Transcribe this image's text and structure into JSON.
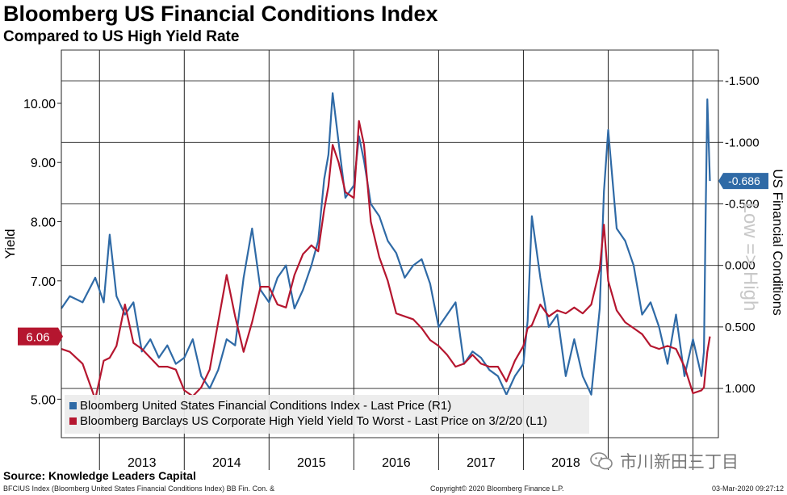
{
  "title": "Bloomberg US Financial Conditions Index",
  "subtitle": "Compared to US High Yield Rate",
  "source": "Source: Knowledge Leaders Capital",
  "footer": {
    "left": "BFCIUS Index (Bloomberg United States Financial Conditions Index) BB Fin. Con. &",
    "center": "Copyright© 2020 Bloomberg Finance L.P.",
    "right": "03-Mar-2020 09:27:12"
  },
  "watermark": "市川新田三丁目",
  "colors": {
    "fci": "#2f6aa6",
    "hy": "#b5162f",
    "background": "#ffffff"
  },
  "chart_data": {
    "type": "line",
    "title": "Bloomberg US Financial Conditions Index",
    "subtitle": "Compared to US High Yield Rate",
    "ylabel_left": "Yield",
    "ylabel_right": "US Financial Conditions",
    "right_axis_annotation": "Low => High",
    "left_axis": {
      "min": 4.35,
      "max": 10.9,
      "ticks": [
        5.0,
        6.0,
        7.0,
        8.0,
        9.0,
        10.0
      ],
      "tick_labels": [
        "5.00",
        "6.00",
        "7.00",
        "8.00",
        "9.00",
        "10.00"
      ]
    },
    "right_axis": {
      "inverted": true,
      "min": -1.75,
      "max": 1.4,
      "ticks": [
        -1.5,
        -1.0,
        -0.5,
        0.0,
        0.5,
        1.0
      ],
      "tick_labels": [
        "-1.500",
        "-1.000",
        "-0.500",
        "0.000",
        "0.500",
        "1.000"
      ]
    },
    "x_axis": {
      "min": 2012.55,
      "max": 2020.3,
      "year_labels": [
        "2013",
        "2014",
        "2015",
        "2016",
        "2017",
        "2018"
      ],
      "year_positions": [
        2013.0,
        2014.0,
        2015.0,
        2016.0,
        2017.0,
        2018.0
      ]
    },
    "last_price_labels": {
      "hy": "6.06",
      "fci": "-0.686"
    },
    "grid": true,
    "legend_position": "bottom-left",
    "series": [
      {
        "name": "Bloomberg United States Financial Conditions Index - Last Price (R1)",
        "axis": "right",
        "color": "#2f6aa6",
        "x": [
          2012.55,
          2012.65,
          2012.8,
          2012.95,
          2013.05,
          2013.12,
          2013.2,
          2013.3,
          2013.4,
          2013.5,
          2013.6,
          2013.7,
          2013.8,
          2013.9,
          2014.0,
          2014.1,
          2014.2,
          2014.3,
          2014.4,
          2014.5,
          2014.6,
          2014.7,
          2014.8,
          2014.9,
          2015.0,
          2015.1,
          2015.2,
          2015.3,
          2015.4,
          2015.5,
          2015.58,
          2015.65,
          2015.7,
          2015.75,
          2015.82,
          2015.9,
          2016.0,
          2016.06,
          2016.12,
          2016.2,
          2016.3,
          2016.4,
          2016.5,
          2016.6,
          2016.7,
          2016.8,
          2016.9,
          2017.0,
          2017.1,
          2017.2,
          2017.3,
          2017.4,
          2017.5,
          2017.6,
          2017.7,
          2017.8,
          2017.9,
          2018.0,
          2018.05,
          2018.1,
          2018.2,
          2018.3,
          2018.4,
          2018.5,
          2018.6,
          2018.7,
          2018.8,
          2018.9,
          2018.95,
          2019.0,
          2019.1,
          2019.2,
          2019.3,
          2019.4,
          2019.5,
          2019.6,
          2019.7,
          2019.8,
          2019.9,
          2020.0,
          2020.1,
          2020.13,
          2020.15,
          2020.17,
          2020.2
        ],
        "y": [
          0.35,
          0.25,
          0.3,
          0.1,
          0.3,
          -0.25,
          0.25,
          0.4,
          0.3,
          0.7,
          0.6,
          0.75,
          0.65,
          0.8,
          0.75,
          0.6,
          0.9,
          1.0,
          0.85,
          0.6,
          0.65,
          0.1,
          -0.3,
          0.2,
          0.3,
          0.1,
          0.0,
          0.35,
          0.2,
          0.0,
          -0.2,
          -0.7,
          -0.9,
          -1.4,
          -1.0,
          -0.55,
          -0.65,
          -1.05,
          -0.85,
          -0.5,
          -0.4,
          -0.2,
          -0.1,
          0.1,
          0.0,
          -0.05,
          0.15,
          0.5,
          0.4,
          0.3,
          0.8,
          0.7,
          0.75,
          0.85,
          0.9,
          1.05,
          0.9,
          0.8,
          0.45,
          -0.4,
          0.1,
          0.5,
          0.4,
          0.9,
          0.6,
          0.9,
          1.05,
          0.35,
          -0.6,
          -1.1,
          -0.3,
          -0.2,
          0.0,
          0.4,
          0.3,
          0.5,
          0.8,
          0.4,
          0.9,
          0.6,
          0.9,
          0.7,
          -0.4,
          -1.35,
          -0.686
        ]
      },
      {
        "name": "Bloomberg Barclays US Corporate High Yield Yield To Worst - Last Price on 3/2/20 (L1)",
        "axis": "left",
        "color": "#b5162f",
        "x": [
          2012.55,
          2012.65,
          2012.8,
          2012.95,
          2013.05,
          2013.12,
          2013.2,
          2013.3,
          2013.4,
          2013.5,
          2013.6,
          2013.7,
          2013.8,
          2013.9,
          2014.0,
          2014.1,
          2014.2,
          2014.3,
          2014.4,
          2014.5,
          2014.6,
          2014.7,
          2014.8,
          2014.9,
          2015.0,
          2015.1,
          2015.2,
          2015.3,
          2015.4,
          2015.5,
          2015.58,
          2015.65,
          2015.7,
          2015.75,
          2015.82,
          2015.9,
          2016.0,
          2016.06,
          2016.12,
          2016.2,
          2016.3,
          2016.4,
          2016.5,
          2016.6,
          2016.7,
          2016.8,
          2016.9,
          2017.0,
          2017.1,
          2017.2,
          2017.3,
          2017.4,
          2017.5,
          2017.6,
          2017.7,
          2017.8,
          2017.9,
          2018.0,
          2018.05,
          2018.1,
          2018.2,
          2018.3,
          2018.4,
          2018.5,
          2018.6,
          2018.7,
          2018.8,
          2018.9,
          2018.95,
          2019.0,
          2019.1,
          2019.2,
          2019.3,
          2019.4,
          2019.5,
          2019.6,
          2019.7,
          2019.8,
          2019.9,
          2020.0,
          2020.1,
          2020.13,
          2020.15,
          2020.17,
          2020.2
        ],
        "y": [
          5.85,
          5.8,
          5.6,
          5.0,
          5.65,
          5.7,
          5.9,
          6.6,
          5.95,
          5.85,
          5.7,
          5.55,
          5.55,
          5.5,
          5.15,
          5.05,
          5.2,
          5.5,
          6.3,
          7.1,
          6.4,
          5.8,
          6.3,
          6.9,
          6.9,
          6.6,
          6.55,
          7.1,
          7.45,
          7.6,
          7.5,
          8.2,
          8.6,
          9.3,
          9.0,
          8.5,
          8.4,
          9.7,
          9.3,
          8.0,
          7.4,
          7.0,
          6.45,
          6.4,
          6.35,
          6.2,
          6.0,
          5.9,
          5.75,
          5.55,
          5.6,
          5.75,
          5.6,
          5.55,
          5.55,
          5.3,
          5.65,
          5.9,
          6.2,
          6.25,
          6.6,
          6.4,
          6.5,
          6.45,
          6.55,
          6.45,
          6.6,
          7.2,
          7.95,
          7.0,
          6.5,
          6.3,
          6.2,
          6.1,
          5.9,
          5.85,
          5.9,
          5.85,
          5.55,
          5.1,
          5.15,
          5.2,
          5.5,
          5.8,
          6.06
        ]
      }
    ]
  }
}
